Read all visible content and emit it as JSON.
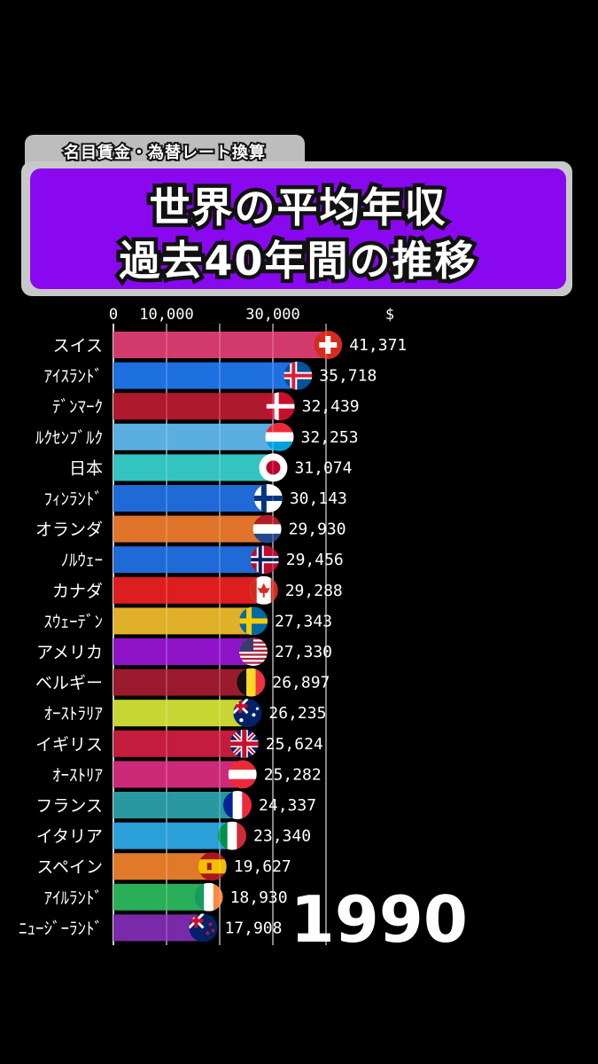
{
  "header": {
    "subtitle": "名目賃金・為替レート換算",
    "title_line1": "世界の平均年収",
    "title_line2": "過去40年間の推移"
  },
  "chart_data": {
    "type": "bar",
    "orientation": "horizontal",
    "year": "1990",
    "unit_label": "$",
    "tick_values": [
      0,
      10000,
      30000
    ],
    "tick_labels": [
      "0",
      "10,000",
      "30,000"
    ],
    "xlim": [
      0,
      44000
    ],
    "grid": true,
    "categories": [
      "スイス",
      "ｱｲｽﾗﾝﾄﾞ",
      "ﾃﾞﾝﾏｰｸ",
      "ﾙｸｾﾝﾌﾞﾙｸ",
      "日本",
      "ﾌｨﾝﾗﾝﾄﾞ",
      "オランダ",
      "ﾉﾙｳｪｰ",
      "カナダ",
      "ｽｳｪｰﾃﾞﾝ",
      "アメリカ",
      "ベルギー",
      "ｵｰｽﾄﾗﾘｱ",
      "イギリス",
      "ｵｰｽﾄﾘｱ",
      "フランス",
      "イタリア",
      "スペイン",
      "ｱｲﾙﾗﾝﾄﾞ",
      "ﾆｭｰｼﾞｰﾗﾝﾄﾞ"
    ],
    "values": [
      41371,
      35718,
      32439,
      32253,
      31074,
      30143,
      29930,
      29456,
      29288,
      27343,
      27330,
      26897,
      26235,
      25624,
      25282,
      24337,
      23340,
      19627,
      18930,
      17908
    ],
    "value_labels": [
      "41,371",
      "35,718",
      "32,439",
      "32,253",
      "31,074",
      "30,143",
      "29,930",
      "29,456",
      "29,288",
      "27,343",
      "27,330",
      "26,897",
      "26,235",
      "25,624",
      "25,282",
      "24,337",
      "23,340",
      "19,627",
      "18,930",
      "17,908"
    ],
    "bar_colors": [
      "#d23a6e",
      "#1e6fe0",
      "#b0182e",
      "#5aaee0",
      "#33c3c0",
      "#1f6ad6",
      "#e0742a",
      "#1f6ad6",
      "#dd1e1e",
      "#e0b028",
      "#8f14c8",
      "#9b1a2e",
      "#c8d633",
      "#c41c3c",
      "#cc2a78",
      "#2a98a0",
      "#2a9fd8",
      "#e07a28",
      "#2aae58",
      "#7a2aa8"
    ],
    "flag_icons": [
      "swiss-flag-icon",
      "iceland-flag-icon",
      "denmark-flag-icon",
      "luxembourg-flag-icon",
      "japan-flag-icon",
      "finland-flag-icon",
      "netherlands-flag-icon",
      "norway-flag-icon",
      "canada-flag-icon",
      "sweden-flag-icon",
      "usa-flag-icon",
      "belgium-flag-icon",
      "australia-flag-icon",
      "uk-flag-icon",
      "austria-flag-icon",
      "france-flag-icon",
      "italy-flag-icon",
      "spain-flag-icon",
      "ireland-flag-icon",
      "new-zealand-flag-icon"
    ]
  },
  "colors": {
    "background": "#000000",
    "title_box": "#8a08f0",
    "title_frame": "#c8c8c8",
    "subtitle_tab": "#bdbdbd"
  }
}
